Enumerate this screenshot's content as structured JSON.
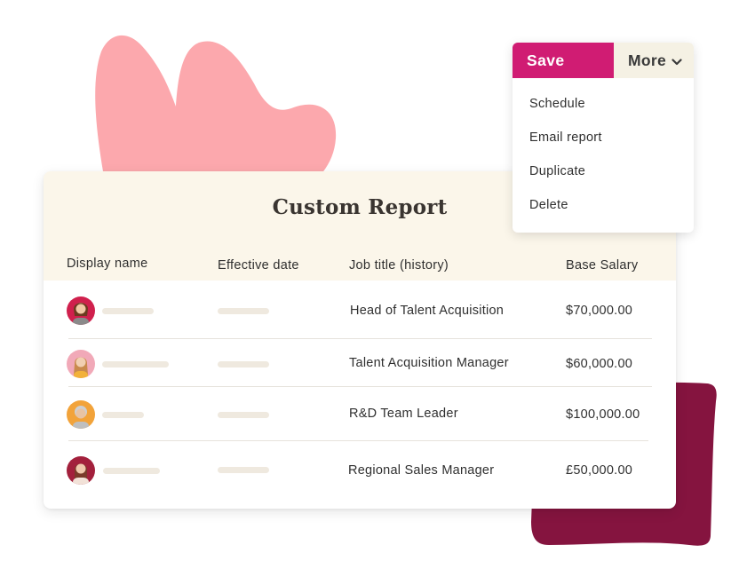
{
  "report": {
    "title": "Custom Report",
    "columns": [
      "Display name",
      "Effective date",
      "Job title (history)",
      "Base Salary"
    ],
    "rows": [
      {
        "job_title": "Head of Talent Acquisition",
        "base_salary": "$70,000.00",
        "avatar_color": "#d0204d"
      },
      {
        "job_title": "Talent Acquisition Manager",
        "base_salary": "$60,000.00",
        "avatar_color": "#f1a9b8"
      },
      {
        "job_title": "R&D Team Leader",
        "base_salary": "$100,000.00",
        "avatar_color": "#f2a33a"
      },
      {
        "job_title": "Regional Sales Manager",
        "base_salary": "£50,000.00",
        "avatar_color": "#a3203c"
      }
    ]
  },
  "toolbar": {
    "save_label": "Save",
    "more_label": "More",
    "more_icon": "chevron-down-icon",
    "menu_items": [
      "Schedule",
      "Email report",
      "Duplicate",
      "Delete"
    ]
  },
  "colors": {
    "save": "#d01c73",
    "more_bg": "#f5f1e4",
    "header_bg": "#fbf6ea",
    "blob_pink": "#fca8ad",
    "blob_maroon": "#85143f"
  }
}
